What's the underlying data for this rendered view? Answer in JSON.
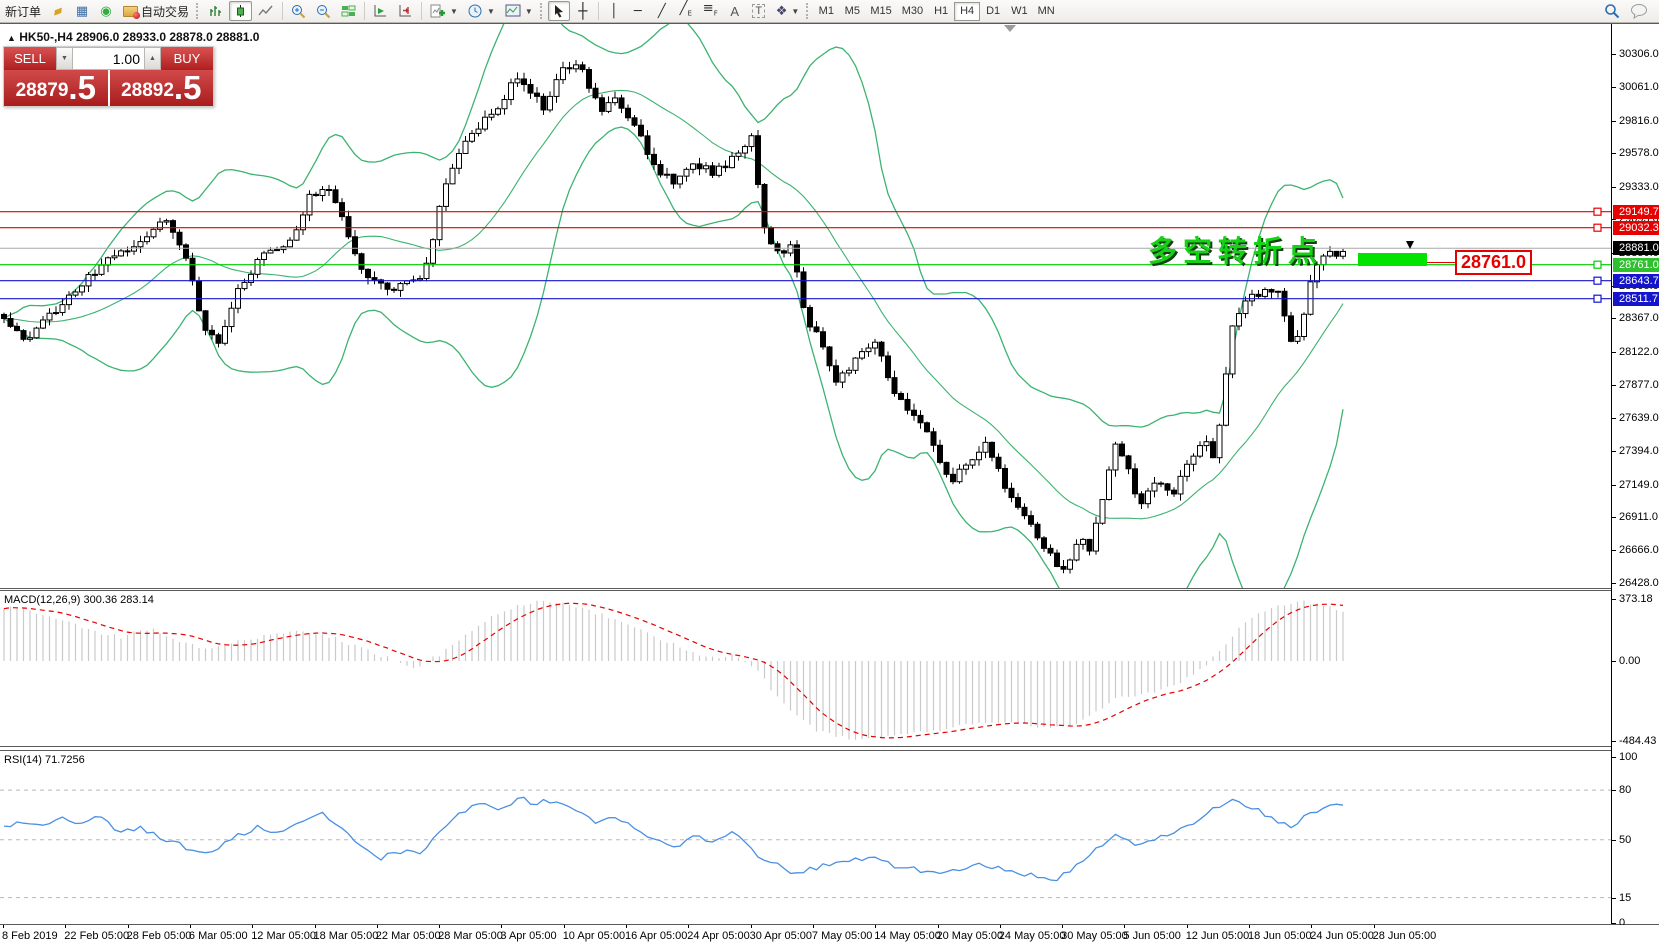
{
  "toolbar": {
    "new_order_label": "新订单",
    "auto_trading_label": "自动交易",
    "timeframes": [
      "M1",
      "M5",
      "M15",
      "M30",
      "H1",
      "H4",
      "D1",
      "W1",
      "MN"
    ],
    "active_timeframe": "H4"
  },
  "symbol_header": {
    "text": "HK50-,H4  28906.0 28933.0 28878.0 28881.0"
  },
  "order_panel": {
    "sell_label": "SELL",
    "buy_label": "BUY",
    "volume": "1.00",
    "sell_price_main": "28879",
    "sell_price_big": ".5",
    "buy_price_main": "28892",
    "buy_price_big": ".5"
  },
  "annotation": {
    "text": "多空转折点",
    "callout": "28761.0"
  },
  "macd_label": "MACD(12,26,9) 300.36 283.14",
  "rsi_label": "RSI(14) 71.7256",
  "price_axis_ticks": [
    "30306.0",
    "30061.0",
    "29816.0",
    "29578.0",
    "29333.0",
    "29095.0",
    "28850.0",
    "28605.0",
    "28367.0",
    "28122.0",
    "27877.0",
    "27639.0",
    "27394.0",
    "27149.0",
    "26911.0",
    "26666.0",
    "26428.0"
  ],
  "macd_axis_ticks": [
    "373.18",
    "0.00",
    "-484.43"
  ],
  "rsi_axis_ticks": [
    "100",
    "80",
    "50",
    "15",
    "0"
  ],
  "time_axis_labels": [
    "8 Feb 2019",
    "22 Feb 05:00",
    "28 Feb 05:00",
    "6 Mar 05:00",
    "12 Mar 05:00",
    "18 Mar 05:00",
    "22 Mar 05:00",
    "28 Mar 05:00",
    "3 Apr 05:00",
    "10 Apr 05:00",
    "16 Apr 05:00",
    "24 Apr 05:00",
    "30 Apr 05:00",
    "7 May 05:00",
    "14 May 05:00",
    "20 May 05:00",
    "24 May 05:00",
    "30 May 05:00",
    "5 Jun 05:00",
    "12 Jun 05:00",
    "18 Jun 05:00",
    "24 Jun 05:00",
    "28 Jun 05:00"
  ],
  "colors": {
    "bollinger": "#3cb371",
    "bull": "#ffffff",
    "bear": "#000000",
    "wick": "#000000",
    "macd_hist": "#c9c9c9",
    "macd_signal": "#e60000",
    "rsi_line": "#4a90e2",
    "level_dash": "#b8b8b8",
    "red_line": "#e60000",
    "blue_line": "#1414cc",
    "green_line": "#00cc00",
    "current_line": "#a8a8a8"
  },
  "chart_data": [
    {
      "type": "candlestick",
      "title": "HK50- H4 with Bollinger Bands",
      "ylim": [
        26428,
        30480
      ],
      "y_ticks": [
        30306,
        30061,
        29816,
        29578,
        29333,
        29095,
        28850,
        28605,
        28367,
        28122,
        27877,
        27639,
        27394,
        27149,
        26911,
        26666,
        26428
      ],
      "ohlc_current": {
        "open": 28906.0,
        "high": 28933.0,
        "low": 28878.0,
        "close": 28881.0
      },
      "bid": 28879.5,
      "ask": 28892.5,
      "bollinger": {
        "period": 20,
        "deviation": 2.5
      },
      "price_keypoints": [
        [
          0,
          28380
        ],
        [
          25,
          28210
        ],
        [
          60,
          28450
        ],
        [
          100,
          28750
        ],
        [
          140,
          28950
        ],
        [
          165,
          29080
        ],
        [
          185,
          28820
        ],
        [
          205,
          28280
        ],
        [
          220,
          28200
        ],
        [
          240,
          28600
        ],
        [
          265,
          28850
        ],
        [
          290,
          28920
        ],
        [
          310,
          29270
        ],
        [
          330,
          29330
        ],
        [
          350,
          28960
        ],
        [
          365,
          28650
        ],
        [
          395,
          28580
        ],
        [
          425,
          28700
        ],
        [
          445,
          29350
        ],
        [
          470,
          29720
        ],
        [
          495,
          29890
        ],
        [
          515,
          30120
        ],
        [
          530,
          30030
        ],
        [
          545,
          29900
        ],
        [
          560,
          30180
        ],
        [
          580,
          30220
        ],
        [
          600,
          29890
        ],
        [
          615,
          29960
        ],
        [
          635,
          29780
        ],
        [
          655,
          29470
        ],
        [
          675,
          29370
        ],
        [
          695,
          29500
        ],
        [
          715,
          29430
        ],
        [
          735,
          29560
        ],
        [
          752,
          29690
        ],
        [
          765,
          28990
        ],
        [
          780,
          28850
        ],
        [
          792,
          28890
        ],
        [
          805,
          28380
        ],
        [
          820,
          28220
        ],
        [
          835,
          27870
        ],
        [
          855,
          28060
        ],
        [
          875,
          28210
        ],
        [
          892,
          27830
        ],
        [
          910,
          27680
        ],
        [
          930,
          27480
        ],
        [
          950,
          27170
        ],
        [
          968,
          27300
        ],
        [
          985,
          27440
        ],
        [
          1000,
          27230
        ],
        [
          1015,
          26980
        ],
        [
          1032,
          26840
        ],
        [
          1048,
          26640
        ],
        [
          1065,
          26500
        ],
        [
          1078,
          26760
        ],
        [
          1090,
          26680
        ],
        [
          1105,
          27120
        ],
        [
          1115,
          27440
        ],
        [
          1127,
          27280
        ],
        [
          1140,
          26980
        ],
        [
          1155,
          27160
        ],
        [
          1172,
          27080
        ],
        [
          1190,
          27320
        ],
        [
          1205,
          27500
        ],
        [
          1215,
          27320
        ],
        [
          1232,
          28330
        ],
        [
          1247,
          28500
        ],
        [
          1262,
          28560
        ],
        [
          1277,
          28600
        ],
        [
          1290,
          28220
        ],
        [
          1300,
          28260
        ],
        [
          1313,
          28700
        ],
        [
          1327,
          28860
        ],
        [
          1336,
          28790
        ],
        [
          1343,
          28881
        ]
      ],
      "hlines": [
        {
          "price": 29149.7,
          "color": "#e60000",
          "chip_bg": "#e60000",
          "marker": true
        },
        {
          "price": 29032.3,
          "color": "#e60000",
          "chip_bg": "#e60000",
          "marker": true
        },
        {
          "price": 28881.0,
          "color": "#a8a8a8",
          "chip_bg": "#000000",
          "marker": false
        },
        {
          "price": 28761.0,
          "color": "#00cc00",
          "chip_bg": "#2fbf2f",
          "marker": true
        },
        {
          "price": 28643.7,
          "color": "#1414cc",
          "chip_bg": "#1414cc",
          "marker": true
        },
        {
          "price": 28511.7,
          "color": "#1414cc",
          "chip_bg": "#1414cc",
          "marker": true
        }
      ]
    },
    {
      "type": "bar",
      "title": "MACD(12,26,9)",
      "current_values": [
        300.36,
        283.14
      ],
      "ylim": [
        -484.43,
        373.18
      ],
      "values_keypoints": [
        [
          0,
          330
        ],
        [
          30,
          300
        ],
        [
          60,
          255
        ],
        [
          90,
          185
        ],
        [
          120,
          145
        ],
        [
          150,
          200
        ],
        [
          180,
          120
        ],
        [
          210,
          65
        ],
        [
          240,
          130
        ],
        [
          270,
          155
        ],
        [
          300,
          180
        ],
        [
          330,
          150
        ],
        [
          360,
          80
        ],
        [
          390,
          15
        ],
        [
          415,
          -40
        ],
        [
          440,
          40
        ],
        [
          465,
          160
        ],
        [
          490,
          265
        ],
        [
          515,
          330
        ],
        [
          540,
          370
        ],
        [
          565,
          350
        ],
        [
          590,
          300
        ],
        [
          615,
          255
        ],
        [
          640,
          185
        ],
        [
          665,
          120
        ],
        [
          690,
          60
        ],
        [
          715,
          15
        ],
        [
          735,
          45
        ],
        [
          755,
          -40
        ],
        [
          775,
          -200
        ],
        [
          795,
          -330
        ],
        [
          815,
          -415
        ],
        [
          835,
          -455
        ],
        [
          855,
          -480
        ],
        [
          875,
          -470
        ],
        [
          895,
          -445
        ],
        [
          915,
          -430
        ],
        [
          935,
          -425
        ],
        [
          955,
          -395
        ],
        [
          975,
          -380
        ],
        [
          995,
          -370
        ],
        [
          1015,
          -378
        ],
        [
          1035,
          -398
        ],
        [
          1055,
          -408
        ],
        [
          1075,
          -385
        ],
        [
          1095,
          -310
        ],
        [
          1115,
          -230
        ],
        [
          1135,
          -205
        ],
        [
          1155,
          -185
        ],
        [
          1175,
          -145
        ],
        [
          1195,
          -85
        ],
        [
          1215,
          30
        ],
        [
          1235,
          175
        ],
        [
          1255,
          275
        ],
        [
          1275,
          335
        ],
        [
          1295,
          360
        ],
        [
          1315,
          350
        ],
        [
          1343,
          300
        ]
      ]
    },
    {
      "type": "line",
      "title": "RSI(14)",
      "current_value": 71.7256,
      "ylim": [
        0,
        100
      ],
      "levels": [
        80,
        50,
        15
      ],
      "keypoints": [
        [
          0,
          56
        ],
        [
          20,
          62
        ],
        [
          40,
          57
        ],
        [
          60,
          64
        ],
        [
          80,
          59
        ],
        [
          100,
          64
        ],
        [
          120,
          54
        ],
        [
          140,
          58
        ],
        [
          160,
          51
        ],
        [
          180,
          47
        ],
        [
          200,
          41
        ],
        [
          220,
          46
        ],
        [
          240,
          53
        ],
        [
          260,
          58
        ],
        [
          280,
          54
        ],
        [
          300,
          62
        ],
        [
          320,
          66
        ],
        [
          340,
          59
        ],
        [
          360,
          46
        ],
        [
          380,
          39
        ],
        [
          400,
          43
        ],
        [
          420,
          41
        ],
        [
          440,
          56
        ],
        [
          460,
          67
        ],
        [
          480,
          71
        ],
        [
          500,
          69
        ],
        [
          520,
          75
        ],
        [
          535,
          72
        ],
        [
          555,
          74
        ],
        [
          575,
          69
        ],
        [
          595,
          60
        ],
        [
          615,
          63
        ],
        [
          635,
          58
        ],
        [
          655,
          50
        ],
        [
          675,
          46
        ],
        [
          695,
          52
        ],
        [
          715,
          49
        ],
        [
          735,
          55
        ],
        [
          755,
          41
        ],
        [
          775,
          36
        ],
        [
          795,
          29
        ],
        [
          815,
          33
        ],
        [
          835,
          36
        ],
        [
          855,
          38
        ],
        [
          875,
          40
        ],
        [
          895,
          34
        ],
        [
          915,
          32
        ],
        [
          935,
          29
        ],
        [
          955,
          32
        ],
        [
          975,
          35
        ],
        [
          995,
          33
        ],
        [
          1015,
          30
        ],
        [
          1035,
          28
        ],
        [
          1055,
          26
        ],
        [
          1075,
          34
        ],
        [
          1095,
          44
        ],
        [
          1115,
          54
        ],
        [
          1135,
          47
        ],
        [
          1155,
          50
        ],
        [
          1175,
          55
        ],
        [
          1195,
          60
        ],
        [
          1215,
          70
        ],
        [
          1235,
          74
        ],
        [
          1255,
          69
        ],
        [
          1275,
          62
        ],
        [
          1290,
          58
        ],
        [
          1310,
          66
        ],
        [
          1330,
          70
        ],
        [
          1343,
          71.7
        ]
      ]
    }
  ]
}
